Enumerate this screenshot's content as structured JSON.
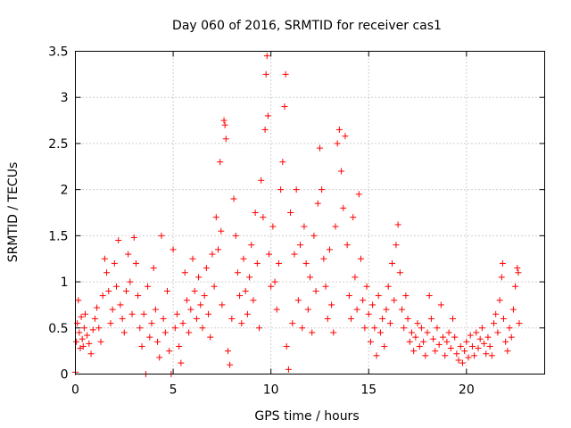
{
  "chart_data": {
    "type": "scatter",
    "title": "Day 060 of 2016, SRMTID for receiver cas1",
    "xlabel": "GPS time / hours",
    "ylabel": "SRMTID / TECUs",
    "xlim": [
      0,
      24
    ],
    "ylim": [
      0,
      3.5
    ],
    "x_ticks": [
      0,
      5,
      10,
      15,
      20
    ],
    "x_tick_labels": [
      "0",
      "5",
      "10",
      "15",
      "20"
    ],
    "y_ticks": [
      0,
      0.5,
      1,
      1.5,
      2,
      2.5,
      3,
      3.5
    ],
    "y_tick_labels": [
      "0",
      "0.5",
      "1",
      "1.5",
      "2",
      "2.5",
      "3",
      "3.5"
    ],
    "grid": true,
    "marker": "plus",
    "color": "#ff0000",
    "series": [
      {
        "name": "SRMTID",
        "points": [
          [
            0.0,
            0.02
          ],
          [
            0.05,
            0.35
          ],
          [
            0.1,
            0.55
          ],
          [
            0.15,
            0.8
          ],
          [
            0.2,
            0.45
          ],
          [
            0.25,
            0.28
          ],
          [
            0.3,
            0.62
          ],
          [
            0.35,
            0.38
          ],
          [
            0.4,
            0.3
          ],
          [
            0.45,
            0.5
          ],
          [
            0.5,
            0.65
          ],
          [
            0.6,
            0.42
          ],
          [
            0.7,
            0.33
          ],
          [
            0.8,
            0.22
          ],
          [
            0.9,
            0.48
          ],
          [
            1.0,
            0.6
          ],
          [
            1.1,
            0.72
          ],
          [
            1.2,
            0.5
          ],
          [
            1.3,
            0.35
          ],
          [
            1.4,
            0.85
          ],
          [
            1.5,
            1.25
          ],
          [
            1.6,
            1.1
          ],
          [
            1.7,
            0.9
          ],
          [
            1.8,
            0.55
          ],
          [
            1.9,
            0.7
          ],
          [
            2.0,
            1.2
          ],
          [
            2.1,
            0.95
          ],
          [
            2.2,
            1.45
          ],
          [
            2.3,
            0.75
          ],
          [
            2.4,
            0.6
          ],
          [
            2.5,
            0.45
          ],
          [
            2.6,
            0.9
          ],
          [
            2.7,
            1.3
          ],
          [
            2.8,
            1.0
          ],
          [
            2.9,
            0.65
          ],
          [
            3.0,
            1.48
          ],
          [
            3.1,
            1.2
          ],
          [
            3.2,
            0.85
          ],
          [
            3.3,
            0.5
          ],
          [
            3.4,
            0.3
          ],
          [
            3.5,
            0.65
          ],
          [
            3.6,
            0.0
          ],
          [
            3.7,
            0.95
          ],
          [
            3.8,
            0.4
          ],
          [
            3.9,
            0.55
          ],
          [
            4.0,
            1.15
          ],
          [
            4.1,
            0.7
          ],
          [
            4.2,
            0.35
          ],
          [
            4.3,
            0.18
          ],
          [
            4.4,
            1.5
          ],
          [
            4.5,
            0.6
          ],
          [
            4.6,
            0.45
          ],
          [
            4.7,
            0.9
          ],
          [
            4.8,
            0.25
          ],
          [
            4.9,
            0.0
          ],
          [
            5.0,
            1.35
          ],
          [
            5.1,
            0.5
          ],
          [
            5.2,
            0.65
          ],
          [
            5.3,
            0.3
          ],
          [
            5.4,
            0.12
          ],
          [
            5.5,
            0.55
          ],
          [
            5.6,
            1.1
          ],
          [
            5.7,
            0.8
          ],
          [
            5.8,
            0.45
          ],
          [
            5.9,
            0.7
          ],
          [
            6.0,
            1.25
          ],
          [
            6.1,
            0.9
          ],
          [
            6.2,
            0.6
          ],
          [
            6.3,
            1.05
          ],
          [
            6.4,
            0.75
          ],
          [
            6.5,
            0.5
          ],
          [
            6.6,
            0.85
          ],
          [
            6.7,
            1.15
          ],
          [
            6.8,
            0.65
          ],
          [
            6.9,
            0.4
          ],
          [
            7.0,
            1.3
          ],
          [
            7.1,
            0.95
          ],
          [
            7.2,
            1.7
          ],
          [
            7.3,
            1.35
          ],
          [
            7.4,
            2.3
          ],
          [
            7.45,
            1.55
          ],
          [
            7.5,
            0.75
          ],
          [
            7.6,
            2.75
          ],
          [
            7.65,
            2.7
          ],
          [
            7.7,
            2.55
          ],
          [
            7.8,
            0.25
          ],
          [
            7.9,
            0.1
          ],
          [
            8.0,
            0.6
          ],
          [
            8.1,
            1.9
          ],
          [
            8.2,
            1.5
          ],
          [
            8.3,
            1.1
          ],
          [
            8.4,
            0.85
          ],
          [
            8.5,
            0.55
          ],
          [
            8.6,
            1.25
          ],
          [
            8.7,
            0.9
          ],
          [
            8.8,
            0.65
          ],
          [
            8.9,
            1.05
          ],
          [
            9.0,
            1.4
          ],
          [
            9.1,
            0.8
          ],
          [
            9.2,
            1.75
          ],
          [
            9.3,
            1.2
          ],
          [
            9.4,
            0.5
          ],
          [
            9.5,
            2.1
          ],
          [
            9.6,
            1.7
          ],
          [
            9.7,
            2.65
          ],
          [
            9.75,
            3.25
          ],
          [
            9.8,
            3.45
          ],
          [
            9.85,
            2.8
          ],
          [
            9.9,
            1.3
          ],
          [
            10.0,
            0.95
          ],
          [
            10.1,
            1.6
          ],
          [
            10.2,
            1.0
          ],
          [
            10.3,
            0.7
          ],
          [
            10.4,
            1.2
          ],
          [
            10.5,
            2.0
          ],
          [
            10.6,
            2.3
          ],
          [
            10.7,
            2.9
          ],
          [
            10.75,
            3.25
          ],
          [
            10.8,
            0.3
          ],
          [
            10.9,
            0.05
          ],
          [
            11.0,
            1.75
          ],
          [
            11.1,
            0.55
          ],
          [
            11.2,
            1.3
          ],
          [
            11.3,
            2.0
          ],
          [
            11.4,
            0.8
          ],
          [
            11.5,
            1.4
          ],
          [
            11.6,
            0.5
          ],
          [
            11.7,
            1.6
          ],
          [
            11.8,
            1.2
          ],
          [
            11.9,
            0.7
          ],
          [
            12.0,
            1.05
          ],
          [
            12.1,
            0.45
          ],
          [
            12.2,
            1.5
          ],
          [
            12.3,
            0.9
          ],
          [
            12.4,
            1.85
          ],
          [
            12.5,
            2.45
          ],
          [
            12.6,
            2.0
          ],
          [
            12.7,
            1.25
          ],
          [
            12.8,
            0.95
          ],
          [
            12.9,
            0.6
          ],
          [
            13.0,
            1.35
          ],
          [
            13.1,
            0.75
          ],
          [
            13.2,
            0.45
          ],
          [
            13.3,
            1.6
          ],
          [
            13.4,
            2.5
          ],
          [
            13.5,
            2.65
          ],
          [
            13.6,
            2.2
          ],
          [
            13.7,
            1.8
          ],
          [
            13.8,
            2.58
          ],
          [
            13.9,
            1.4
          ],
          [
            14.0,
            0.85
          ],
          [
            14.1,
            0.6
          ],
          [
            14.2,
            1.7
          ],
          [
            14.3,
            1.05
          ],
          [
            14.4,
            0.7
          ],
          [
            14.5,
            1.95
          ],
          [
            14.6,
            1.25
          ],
          [
            14.7,
            0.8
          ],
          [
            14.8,
            0.5
          ],
          [
            14.9,
            0.95
          ],
          [
            15.0,
            0.65
          ],
          [
            15.1,
            0.35
          ],
          [
            15.2,
            0.75
          ],
          [
            15.3,
            0.5
          ],
          [
            15.4,
            0.2
          ],
          [
            15.5,
            0.85
          ],
          [
            15.6,
            0.45
          ],
          [
            15.7,
            0.6
          ],
          [
            15.8,
            0.3
          ],
          [
            15.9,
            0.7
          ],
          [
            16.0,
            0.95
          ],
          [
            16.1,
            0.55
          ],
          [
            16.2,
            1.2
          ],
          [
            16.3,
            0.8
          ],
          [
            16.4,
            1.4
          ],
          [
            16.5,
            1.62
          ],
          [
            16.6,
            1.1
          ],
          [
            16.7,
            0.7
          ],
          [
            16.8,
            0.5
          ],
          [
            16.9,
            0.85
          ],
          [
            17.0,
            0.6
          ],
          [
            17.1,
            0.35
          ],
          [
            17.2,
            0.45
          ],
          [
            17.3,
            0.25
          ],
          [
            17.4,
            0.4
          ],
          [
            17.5,
            0.55
          ],
          [
            17.6,
            0.3
          ],
          [
            17.7,
            0.5
          ],
          [
            17.8,
            0.35
          ],
          [
            17.9,
            0.2
          ],
          [
            18.0,
            0.45
          ],
          [
            18.1,
            0.85
          ],
          [
            18.2,
            0.6
          ],
          [
            18.3,
            0.38
          ],
          [
            18.4,
            0.25
          ],
          [
            18.5,
            0.5
          ],
          [
            18.6,
            0.32
          ],
          [
            18.7,
            0.75
          ],
          [
            18.8,
            0.4
          ],
          [
            18.9,
            0.2
          ],
          [
            19.0,
            0.35
          ],
          [
            19.1,
            0.45
          ],
          [
            19.2,
            0.28
          ],
          [
            19.3,
            0.6
          ],
          [
            19.4,
            0.4
          ],
          [
            19.5,
            0.22
          ],
          [
            19.6,
            0.15
          ],
          [
            19.7,
            0.3
          ],
          [
            19.8,
            0.12
          ],
          [
            19.9,
            0.25
          ],
          [
            20.0,
            0.35
          ],
          [
            20.1,
            0.18
          ],
          [
            20.2,
            0.42
          ],
          [
            20.3,
            0.3
          ],
          [
            20.4,
            0.2
          ],
          [
            20.5,
            0.45
          ],
          [
            20.6,
            0.28
          ],
          [
            20.7,
            0.38
          ],
          [
            20.8,
            0.5
          ],
          [
            20.9,
            0.33
          ],
          [
            21.0,
            0.22
          ],
          [
            21.1,
            0.4
          ],
          [
            21.2,
            0.3
          ],
          [
            21.3,
            0.2
          ],
          [
            21.4,
            0.55
          ],
          [
            21.5,
            0.65
          ],
          [
            21.6,
            0.45
          ],
          [
            21.7,
            0.8
          ],
          [
            21.8,
            1.05
          ],
          [
            21.85,
            1.2
          ],
          [
            21.9,
            0.6
          ],
          [
            22.0,
            0.35
          ],
          [
            22.1,
            0.25
          ],
          [
            22.2,
            0.5
          ],
          [
            22.3,
            0.4
          ],
          [
            22.4,
            0.7
          ],
          [
            22.5,
            0.95
          ],
          [
            22.6,
            1.15
          ],
          [
            22.65,
            1.1
          ],
          [
            22.7,
            0.55
          ]
        ]
      }
    ]
  }
}
